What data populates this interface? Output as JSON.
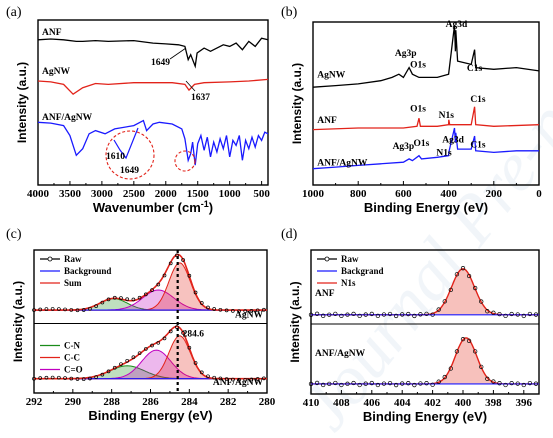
{
  "watermark": "Journal Pre-proofs",
  "colors": {
    "black": "#000000",
    "red": "#e2231a",
    "blue": "#1a1aff",
    "green": "#1a8c1a",
    "purple": "#c000c0",
    "fill_red": "#f4a6a0",
    "fill_purple": "#e3a6e8"
  },
  "chart_data": [
    {
      "panel": "(a)",
      "type": "line",
      "xlabel": "Wavenumber (cm",
      "xlabel_sup": "-1",
      "xlabel_end": ")",
      "ylabel": "Intensity (a.u.)",
      "xlim": [
        4000,
        400
      ],
      "x_reversed": true,
      "xticks": [
        4000,
        3500,
        3000,
        2500,
        2000,
        1500,
        1000,
        500
      ],
      "series": [
        {
          "name": "ANF",
          "color": "#000000",
          "baseline": 0.88,
          "points": [
            [
              4000,
              0.88
            ],
            [
              3800,
              0.885
            ],
            [
              3600,
              0.88
            ],
            [
              3400,
              0.87
            ],
            [
              3300,
              0.87
            ],
            [
              3100,
              0.875
            ],
            [
              2900,
              0.87
            ],
            [
              2500,
              0.875
            ],
            [
              2200,
              0.86
            ],
            [
              2000,
              0.855
            ],
            [
              1800,
              0.85
            ],
            [
              1700,
              0.84
            ],
            [
              1649,
              0.76
            ],
            [
              1610,
              0.79
            ],
            [
              1540,
              0.72
            ],
            [
              1510,
              0.8
            ],
            [
              1400,
              0.83
            ],
            [
              1300,
              0.81
            ],
            [
              1100,
              0.85
            ],
            [
              1000,
              0.84
            ],
            [
              900,
              0.86
            ],
            [
              800,
              0.82
            ],
            [
              700,
              0.87
            ],
            [
              600,
              0.84
            ],
            [
              500,
              0.89
            ],
            [
              400,
              0.88
            ]
          ]
        },
        {
          "name": "AgNW",
          "color": "#e2231a",
          "points": [
            [
              4000,
              0.63
            ],
            [
              3800,
              0.625
            ],
            [
              3600,
              0.61
            ],
            [
              3450,
              0.55
            ],
            [
              3300,
              0.59
            ],
            [
              3100,
              0.615
            ],
            [
              2900,
              0.61
            ],
            [
              2500,
              0.62
            ],
            [
              2100,
              0.62
            ],
            [
              1900,
              0.62
            ],
            [
              1700,
              0.61
            ],
            [
              1637,
              0.575
            ],
            [
              1550,
              0.61
            ],
            [
              1400,
              0.62
            ],
            [
              1000,
              0.625
            ],
            [
              700,
              0.63
            ],
            [
              400,
              0.64
            ]
          ]
        },
        {
          "name": "ANF/AgNW",
          "color": "#1a1aff",
          "points": [
            [
              4000,
              0.38
            ],
            [
              3800,
              0.375
            ],
            [
              3600,
              0.36
            ],
            [
              3500,
              0.3
            ],
            [
              3400,
              0.18
            ],
            [
              3300,
              0.22
            ],
            [
              3200,
              0.31
            ],
            [
              3100,
              0.33
            ],
            [
              2950,
              0.31
            ],
            [
              2800,
              0.34
            ],
            [
              2500,
              0.36
            ],
            [
              2350,
              0.39
            ],
            [
              2300,
              0.33
            ],
            [
              2200,
              0.37
            ],
            [
              2100,
              0.38
            ],
            [
              1900,
              0.37
            ],
            [
              1750,
              0.34
            ],
            [
              1700,
              0.28
            ],
            [
              1649,
              0.15
            ],
            [
              1610,
              0.19
            ],
            [
              1580,
              0.26
            ],
            [
              1540,
              0.12
            ],
            [
              1500,
              0.25
            ],
            [
              1450,
              0.3
            ],
            [
              1400,
              0.21
            ],
            [
              1350,
              0.29
            ],
            [
              1300,
              0.17
            ],
            [
              1250,
              0.26
            ],
            [
              1200,
              0.2
            ],
            [
              1150,
              0.28
            ],
            [
              1100,
              0.22
            ],
            [
              1050,
              0.3
            ],
            [
              1000,
              0.17
            ],
            [
              950,
              0.27
            ],
            [
              900,
              0.24
            ],
            [
              850,
              0.3
            ],
            [
              800,
              0.15
            ],
            [
              750,
              0.27
            ],
            [
              700,
              0.22
            ],
            [
              650,
              0.29
            ],
            [
              600,
              0.23
            ],
            [
              550,
              0.3
            ],
            [
              500,
              0.27
            ],
            [
              450,
              0.32
            ],
            [
              400,
              0.31
            ]
          ]
        }
      ],
      "annotations": [
        "1649",
        "1637",
        "1610",
        "1649"
      ]
    },
    {
      "panel": "(b)",
      "type": "line",
      "xlabel": "Binding Energy (eV)",
      "ylabel": "Intensity (a.u.)",
      "xlim": [
        1000,
        0
      ],
      "x_reversed": true,
      "xticks": [
        1000,
        800,
        600,
        400,
        200,
        0
      ],
      "series": [
        {
          "name": "AgNW",
          "color": "#000000",
          "label_pos": [
            990,
            0.66
          ],
          "points": [
            [
              1000,
              0.6
            ],
            [
              900,
              0.61
            ],
            [
              800,
              0.62
            ],
            [
              700,
              0.64
            ],
            [
              650,
              0.66
            ],
            [
              620,
              0.68
            ],
            [
              600,
              0.66
            ],
            [
              575,
              0.72
            ],
            [
              560,
              0.68
            ],
            [
              531,
              0.66
            ],
            [
              520,
              0.66
            ],
            [
              450,
              0.66
            ],
            [
              400,
              0.68
            ],
            [
              374,
              0.98
            ],
            [
              370,
              0.82
            ],
            [
              368,
              0.95
            ],
            [
              360,
              0.76
            ],
            [
              300,
              0.74
            ],
            [
              285,
              0.83
            ],
            [
              280,
              0.72
            ],
            [
              200,
              0.71
            ],
            [
              100,
              0.72
            ],
            [
              0,
              0.7
            ]
          ]
        },
        {
          "name": "ANF",
          "color": "#e2231a",
          "label_pos": [
            990,
            0.38
          ],
          "points": [
            [
              1000,
              0.34
            ],
            [
              800,
              0.35
            ],
            [
              600,
              0.35
            ],
            [
              540,
              0.36
            ],
            [
              531,
              0.41
            ],
            [
              525,
              0.36
            ],
            [
              450,
              0.36
            ],
            [
              400,
              0.37
            ],
            [
              399,
              0.4
            ],
            [
              395,
              0.37
            ],
            [
              300,
              0.37
            ],
            [
              285,
              0.48
            ],
            [
              280,
              0.37
            ],
            [
              200,
              0.36
            ],
            [
              0,
              0.37
            ]
          ]
        },
        {
          "name": "ANF/AgNW",
          "color": "#1a1aff",
          "label_pos": [
            990,
            0.12
          ],
          "points": [
            [
              1000,
              0.1
            ],
            [
              900,
              0.11
            ],
            [
              800,
              0.12
            ],
            [
              700,
              0.13
            ],
            [
              600,
              0.14
            ],
            [
              575,
              0.16
            ],
            [
              560,
              0.15
            ],
            [
              531,
              0.18
            ],
            [
              520,
              0.16
            ],
            [
              450,
              0.17
            ],
            [
              400,
              0.18
            ],
            [
              399,
              0.2
            ],
            [
              374,
              0.35
            ],
            [
              370,
              0.26
            ],
            [
              368,
              0.32
            ],
            [
              360,
              0.22
            ],
            [
              300,
              0.22
            ],
            [
              285,
              0.3
            ],
            [
              280,
              0.21
            ],
            [
              200,
              0.2
            ],
            [
              100,
              0.21
            ],
            [
              0,
              0.21
            ]
          ]
        }
      ],
      "peak_labels": [
        {
          "text": "Ag3d",
          "x": 365,
          "y": 0.97
        },
        {
          "text": "Ag3p",
          "x": 590,
          "y": 0.79
        },
        {
          "text": "O1s",
          "x": 535,
          "y": 0.72
        },
        {
          "text": "C1s",
          "x": 285,
          "y": 0.7
        },
        {
          "text": "O1s",
          "x": 535,
          "y": 0.45
        },
        {
          "text": "N1s",
          "x": 410,
          "y": 0.41
        },
        {
          "text": "C1s",
          "x": 270,
          "y": 0.51
        },
        {
          "text": "Ag3p",
          "x": 600,
          "y": 0.22
        },
        {
          "text": "O1s",
          "x": 520,
          "y": 0.24
        },
        {
          "text": "Ag3d",
          "x": 380,
          "y": 0.26
        },
        {
          "text": "N1s",
          "x": 420,
          "y": 0.18
        },
        {
          "text": "C1s",
          "x": 270,
          "y": 0.23
        }
      ]
    },
    {
      "panel": "(c)",
      "type": "line",
      "xlabel": "Binding Energy (eV)",
      "ylabel": "Intensity (a.u.)",
      "xlim": [
        292,
        280
      ],
      "x_reversed": true,
      "xticks": [
        292,
        290,
        288,
        286,
        284,
        282,
        280
      ],
      "legend_top": [
        {
          "name": "Raw",
          "color": "#000000",
          "marker": "circle"
        },
        {
          "name": "Background",
          "color": "#1a1aff"
        },
        {
          "name": "Sum",
          "color": "#e2231a"
        }
      ],
      "legend_bottom": [
        {
          "name": "C-N",
          "color": "#1a8c1a"
        },
        {
          "name": "C-C",
          "color": "#e2231a"
        },
        {
          "name": "C=O",
          "color": "#c000c0"
        }
      ],
      "dashed_line_x": 284.6,
      "dashed_label": "284.6",
      "subplots": [
        {
          "name": "AgNW",
          "base": 0.55,
          "height": 0.38,
          "bg": 0.03,
          "components": [
            {
              "name": "C-N",
              "center": 287.9,
              "amp": 0.08,
              "sigma": 0.7,
              "color": "#1a8c1a"
            },
            {
              "name": "C=O",
              "center": 285.6,
              "amp": 0.14,
              "sigma": 0.8,
              "color": "#c000c0"
            },
            {
              "name": "C-C",
              "center": 284.5,
              "amp": 0.33,
              "sigma": 0.55,
              "color": "#e2231a"
            }
          ]
        },
        {
          "name": "ANF/AgNW",
          "base": 0.06,
          "height": 0.4,
          "bg": 0.04,
          "components": [
            {
              "name": "C-N",
              "center": 287.2,
              "amp": 0.09,
              "sigma": 0.9,
              "color": "#1a8c1a"
            },
            {
              "name": "C=O",
              "center": 285.7,
              "amp": 0.2,
              "sigma": 0.75,
              "color": "#c000c0"
            },
            {
              "name": "C-C",
              "center": 284.5,
              "amp": 0.3,
              "sigma": 0.55,
              "color": "#e2231a"
            }
          ]
        }
      ]
    },
    {
      "panel": "(d)",
      "type": "line",
      "xlabel": "Binding Energy (eV)",
      "ylabel": "Intensity (a.u.)",
      "xlim": [
        410,
        395
      ],
      "x_reversed": true,
      "xticks": [
        410,
        408,
        406,
        404,
        402,
        400,
        398,
        396
      ],
      "legend": [
        {
          "name": "Raw",
          "color": "#000000",
          "marker": "circle"
        },
        {
          "name": "Backgrand",
          "color": "#1a1aff"
        },
        {
          "name": "N1s",
          "color": "#e2231a"
        }
      ],
      "subplots": [
        {
          "name": "ANF",
          "base": 0.55,
          "center": 400.0,
          "amp": 0.32,
          "sigma": 0.75
        },
        {
          "name": "ANF/AgNW",
          "base": 0.07,
          "center": 399.8,
          "amp": 0.32,
          "sigma": 0.7
        }
      ]
    }
  ]
}
